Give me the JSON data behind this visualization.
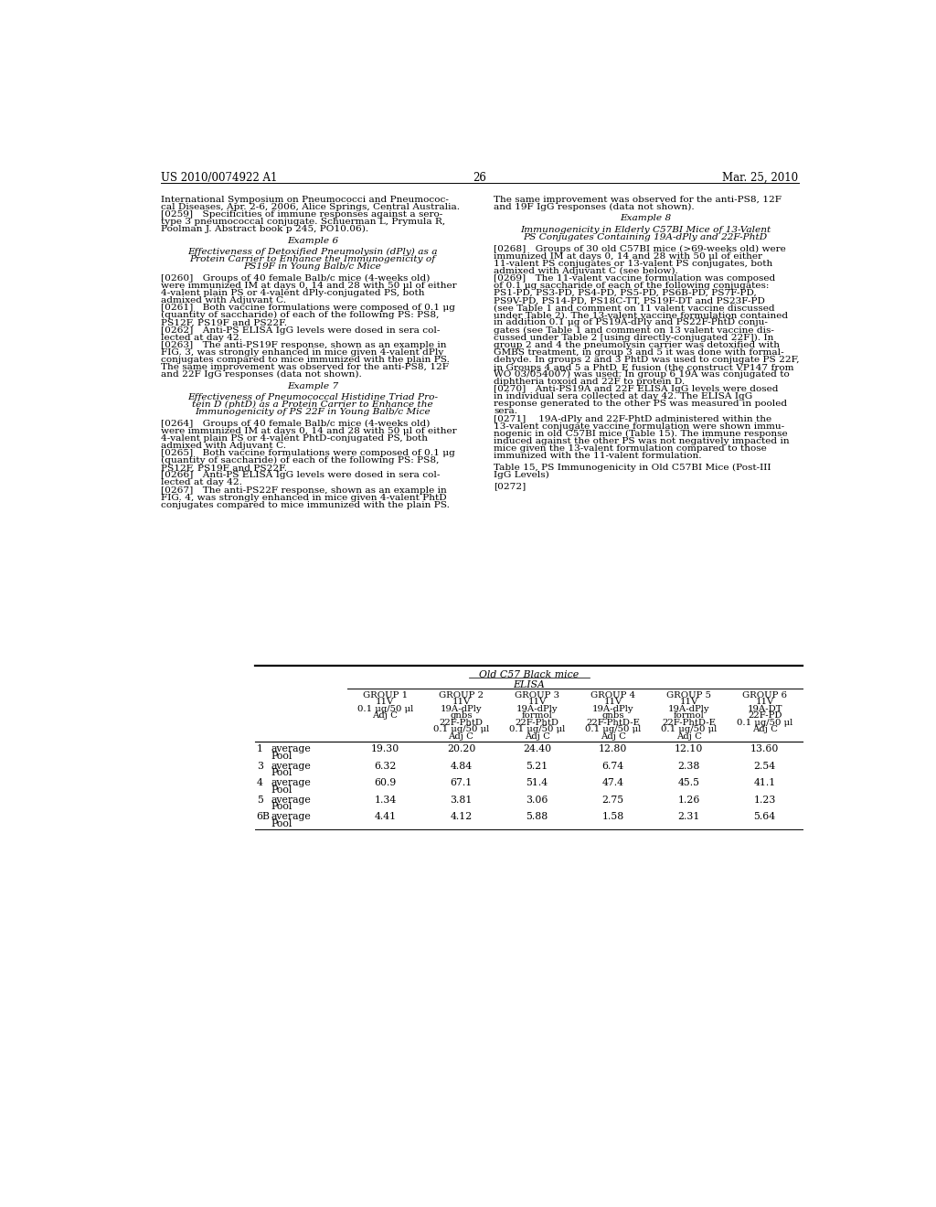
{
  "page_header_left": "US 2010/0074922 A1",
  "page_header_right": "Mar. 25, 2010",
  "page_number": "26",
  "background_color": "#ffffff",
  "left_column": [
    {
      "type": "text",
      "content": "International Symposium on Pneumococci and Pneumococ-\ncal Diseases, Apr. 2-6, 2006, Alice Springs, Central Australia.\n[0259] Specificities of immune responses against a sero-\ntype 3 pneumococcal conjugate. Schuerman L, Prymula R,\nPoolman J. Abstract book p 245, PO10.06)."
    },
    {
      "type": "blank"
    },
    {
      "type": "heading",
      "content": "Example 6"
    },
    {
      "type": "blank"
    },
    {
      "type": "heading",
      "content": "Effectiveness of Detoxified Pneumolysin (dPly) as a\nProtein Carrier to Enhance the Immunogenicity of\nPS19F in Young Balb/c Mice"
    },
    {
      "type": "blank"
    },
    {
      "type": "text",
      "content": "[0260] Groups of 40 female Balb/c mice (4-weeks old)\nwere immunized IM at days 0, 14 and 28 with 50 μl of either\n4-valent plain PS or 4-valent dPly-conjugated PS, both\nadmixed with Adjuvant C."
    },
    {
      "type": "text",
      "content": "[0261] Both vaccine formulations were composed of 0.1 μg\n(quantity of saccharide) of each of the following PS: PS8,\nPS12F, PS19F and PS22F."
    },
    {
      "type": "text",
      "content": "[0262] Anti-PS ELISA IgG levels were dosed in sera col-\nlected at day 42."
    },
    {
      "type": "text",
      "content": "[0263] The anti-PS19F response, shown as an example in\nFIG. 3, was strongly enhanced in mice given 4-valent dPly\nconjugates compared to mice immunized with the plain PS.\nThe same improvement was observed for the anti-PS8, 12F\nand 22F IgG responses (data not shown)."
    },
    {
      "type": "blank"
    },
    {
      "type": "heading",
      "content": "Example 7"
    },
    {
      "type": "blank"
    },
    {
      "type": "heading",
      "content": "Effectiveness of Pneumococcal Histidine Triad Pro-\ntein D (phtD) as a Protein Carrier to Enhance the\nImmunogenicity of PS 22F in Young Balb/c Mice"
    },
    {
      "type": "blank"
    },
    {
      "type": "text",
      "content": "[0264] Groups of 40 female Balb/c mice (4-weeks old)\nwere immunized IM at days 0, 14 and 28 with 50 μl of either\n4-valent plain PS or 4-valent PhtD-conjugated PS, both\nadmixed with Adjuvant C."
    },
    {
      "type": "text",
      "content": "[0265] Both vaccine formulations were composed of 0.1 μg\n(quantity of saccharide) of each of the following PS: PS8,\nPS12F, PS19F and PS22F."
    },
    {
      "type": "text",
      "content": "[0266] Anti-PS ELISA IgG levels were dosed in sera col-\nlected at day 42."
    },
    {
      "type": "text",
      "content": "[0267] The anti-PS22F response, shown as an example in\nFIG. 4, was strongly enhanced in mice given 4-valent PhtD\nconjugates compared to mice immunized with the plain PS."
    }
  ],
  "right_column": [
    {
      "type": "text",
      "content": "The same improvement was observed for the anti-PS8, 12F\nand 19F IgG responses (data not shown)."
    },
    {
      "type": "blank"
    },
    {
      "type": "heading",
      "content": "Example 8"
    },
    {
      "type": "blank"
    },
    {
      "type": "heading",
      "content": "Immunogenicity in Elderly C57BI Mice of 13-Valent\nPS Conjugates Containing 19A-dPly and 22F-PhtD"
    },
    {
      "type": "blank"
    },
    {
      "type": "text",
      "content": "[0268] Groups of 30 old C57BI mice (>69-weeks old) were\nimmunized IM at days 0, 14 and 28 with 50 μl of either\n11-valent PS conjugates or 13-valent PS conjugates, both\nadmixed with Adjuvant C (see below)."
    },
    {
      "type": "text",
      "content": "[0269] The 11-valent vaccine formulation was composed\nof 0.1 μg saccharide of each of the following conjugates:\nPS1-PD, PS3-PD, PS4-PD, PS5-PD, PS6B-PD, PS7F-PD,\nPS9V-PD, PS14-PD, PS18C-TT, PS19F-DT and PS23F-PD\n(see Table 1 and comment on 11 valent vaccine discussed\nunder Table 2). The 13-valent vaccine formulation contained\nin addition 0.1 μg of PS19A-dPly and PS22F-PhtD conju-\ngates (see Table 1 and comment on 13 valent vaccine dis-\ncussed under Table 2 [using directly-conjugated 22F]). In\ngroup 2 and 4 the pneumolysin carrier was detoxified with\nGMBS treatment, in group 3 and 5 it was done with formal-\ndehyde. In groups 2 and 3 PhtD was used to conjugate PS 22F,\nin Groups 4 and 5 a PhtD_E fusion (the construct VP147 from\nWO 03/054007) was used. In group 6 19A was conjugated to\ndiphtheria toxoid and 22F to protein D."
    },
    {
      "type": "text",
      "content": "[0270] Anti-PS19A and 22F ELISA IgG levels were dosed\nin individual sera collected at day 42. The ELISA IgG\nresponse generated to the other PS was measured in pooled\nsera."
    },
    {
      "type": "text",
      "content": "[0271]  19A-dPly and 22F-PhtD administered within the\n13-valent conjugate vaccine formulation were shown immu-\nnogenic in old C57BI mice (Table 15). The immune response\ninduced against the other PS was not negatively impacted in\nmice given the 13-valent formulation compared to those\nimmunized with the 11-valent formulation."
    },
    {
      "type": "blank"
    },
    {
      "type": "text",
      "content": "Table 15, PS Immunogenicity in Old C57BI Mice (Post-III\nIgG Levels)"
    },
    {
      "type": "blank"
    },
    {
      "type": "text",
      "content": "[0272]"
    }
  ],
  "table": {
    "super_header": "Old C57 Black mice",
    "sub_header": "ELISA",
    "col_headers": [
      "GROUP 1\n11V\n0.1 μg/50 μl\nAdj C",
      "GROUP 2\n11V\n19A-dPly\ngnbs\n22F-PhtD\n0.1 μg/50 μl\nAdj C",
      "GROUP 3\n11V\n19A-dPly\nformol\n22F-PhtD\n0.1 μg/50 μl\nAdj C",
      "GROUP 4\n11V\n19A-dPly\ngnbs\n22F-PhtD-E\n0.1 μg/50 μl\nAdj C",
      "GROUP 5\n11V\n19A-dPly\nformol\n22F-PhtD-E\n0.1 μg/50 μl\nAdj C",
      "GROUP 6\n11V\n19A-DT\n22F-PD\n0.1 μg/50 μl\nAdj C"
    ],
    "rows": [
      {
        "row_label": "1",
        "sub_label": "average\nPool",
        "values": [
          "19.30",
          "20.20",
          "24.40",
          "12.80",
          "12.10",
          "13.60"
        ]
      },
      {
        "row_label": "3",
        "sub_label": "average\nPool",
        "values": [
          "6.32",
          "4.84",
          "5.21",
          "6.74",
          "2.38",
          "2.54"
        ]
      },
      {
        "row_label": "4",
        "sub_label": "average\nPool",
        "values": [
          "60.9",
          "67.1",
          "51.4",
          "47.4",
          "45.5",
          "41.1"
        ]
      },
      {
        "row_label": "5",
        "sub_label": "average\nPool",
        "values": [
          "1.34",
          "3.81",
          "3.06",
          "2.75",
          "1.26",
          "1.23"
        ]
      },
      {
        "row_label": "6B",
        "sub_label": "average\nPool",
        "values": [
          "4.41",
          "4.12",
          "5.88",
          "1.58",
          "2.31",
          "5.64"
        ]
      }
    ]
  }
}
